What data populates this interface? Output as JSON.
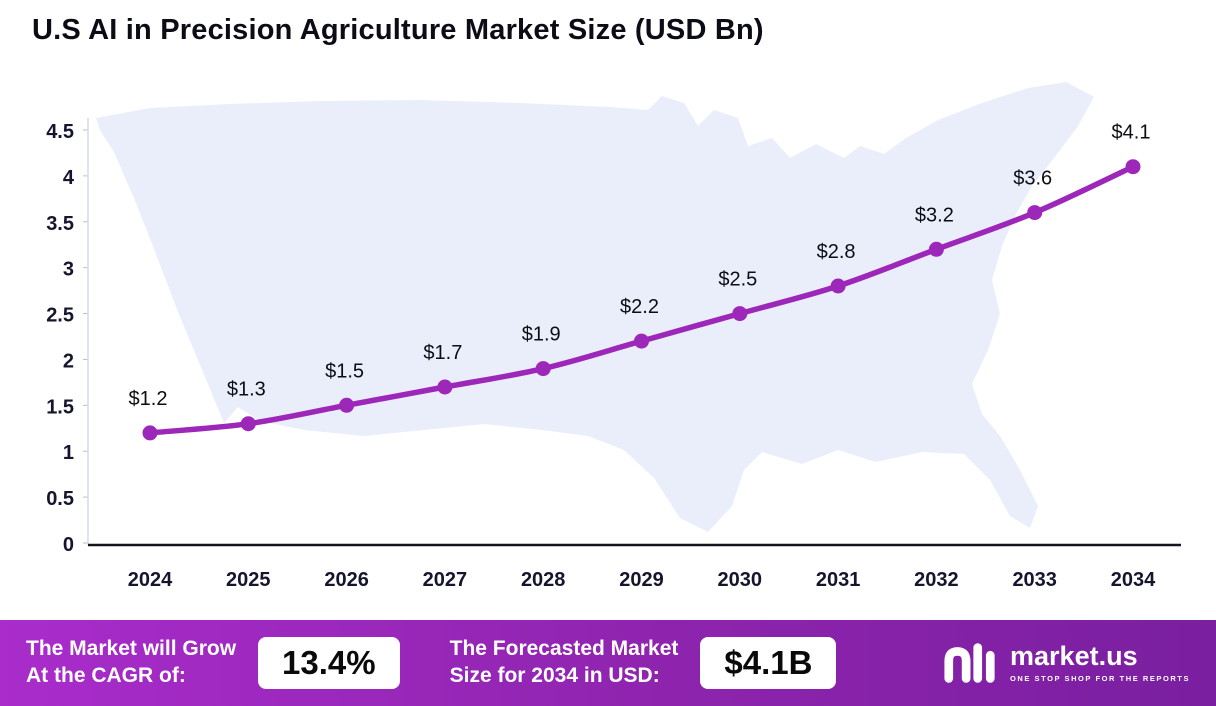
{
  "title": "U.S AI in Precision Agriculture Market Size (USD Bn)",
  "chart_data": {
    "type": "line",
    "title": "U.S AI in Precision Agriculture Market Size (USD Bn)",
    "categories": [
      "2024",
      "2025",
      "2026",
      "2027",
      "2028",
      "2029",
      "2030",
      "2031",
      "2032",
      "2033",
      "2034"
    ],
    "series": [
      {
        "name": "U.S AI in Precision Agriculture Market Size (USD Bn)",
        "values": [
          1.2,
          1.3,
          1.5,
          1.7,
          1.9,
          2.2,
          2.5,
          2.8,
          3.2,
          3.6,
          4.1
        ]
      }
    ],
    "point_labels": [
      "$1.2",
      "$1.3",
      "$1.5",
      "$1.7",
      "$1.9",
      "$2.2",
      "$2.5",
      "$2.8",
      "$3.2",
      "$3.6",
      "$4.1"
    ],
    "xlabel": "",
    "ylabel": "",
    "ylim": [
      0,
      4.5
    ],
    "yticks": [
      "0",
      "0.5",
      "1",
      "1.5",
      "2",
      "2.5",
      "3",
      "3.5",
      "4",
      "4.5"
    ],
    "grid": false,
    "legend": "none",
    "line_color": "#9c27b8",
    "marker": "circle",
    "background": "usa-map-silhouette"
  },
  "colors": {
    "line": "#9c27b8",
    "map_fill": "#eaeefa",
    "axis_text": "#15152e",
    "banner_gradient_start": "#a92ccb",
    "banner_gradient_end": "#7a1fa0"
  },
  "banner": {
    "cagr_label_line1": "The Market will Grow",
    "cagr_label_line2": "At the CAGR of:",
    "cagr_value": "13.4%",
    "forecast_label_line1": "The Forecasted Market",
    "forecast_label_line2": "Size for 2034 in USD:",
    "forecast_value": "$4.1B",
    "brand_name": "market.us",
    "brand_tagline": "ONE STOP SHOP FOR THE REPORTS"
  }
}
